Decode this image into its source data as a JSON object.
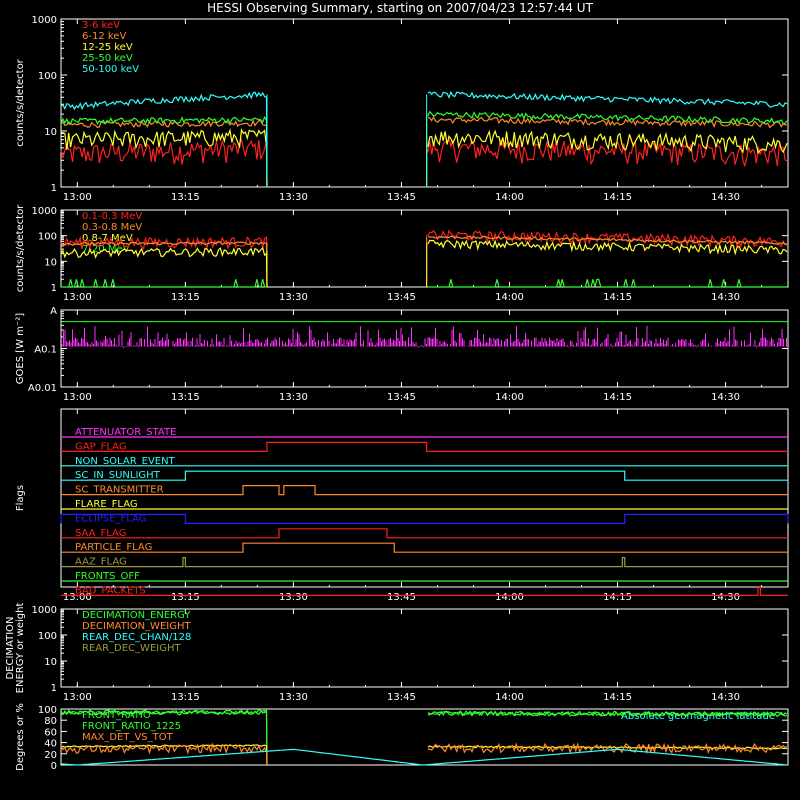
{
  "title": "HESSI Observing Summary, starting on 2007/04/23 12:57:44 UT",
  "colors": {
    "background": "#000000",
    "axes": "#ffffff",
    "red": "#ff2020",
    "orange": "#ff8a2a",
    "yellow": "#ffff30",
    "green": "#30ff30",
    "cyan": "#30ffff",
    "magenta": "#ff30ff",
    "blue": "#2020ff",
    "olive": "#9a9a40"
  },
  "chart_data": [
    {
      "type": "line",
      "name": "hxr-low",
      "ylabel": "counts/s/detector",
      "yscale": "log",
      "ylim": [
        1,
        1000
      ],
      "y_ticks": [
        1,
        10,
        100,
        1000
      ],
      "y_tick_labels": [
        "1",
        "10",
        "100",
        "1000"
      ],
      "x_ticks": [
        "13:00",
        "13:15",
        "13:30",
        "13:45",
        "14:00",
        "14:15",
        "14:30"
      ],
      "xlim": [
        "12:57:44",
        "14:38:40"
      ],
      "gap": [
        "13:26:20",
        "13:48:30"
      ],
      "legend": [
        {
          "label": "3-6 keV",
          "color": "red"
        },
        {
          "label": "6-12 keV",
          "color": "orange"
        },
        {
          "label": "12-25 keV",
          "color": "yellow"
        },
        {
          "label": "25-50 keV",
          "color": "green"
        },
        {
          "label": "50-100 keV",
          "color": "cyan"
        }
      ],
      "series": [
        {
          "color": "red",
          "x": [
            "13:00",
            "13:26",
            "13:49",
            "14:38"
          ],
          "values": [
            4,
            5,
            5,
            4
          ]
        },
        {
          "color": "orange",
          "x": [
            "13:00",
            "13:26",
            "13:49",
            "14:38"
          ],
          "values": [
            13,
            14,
            16,
            13
          ]
        },
        {
          "color": "yellow",
          "x": [
            "13:00",
            "13:26",
            "13:49",
            "14:38"
          ],
          "values": [
            7,
            8,
            8,
            6
          ]
        },
        {
          "color": "green",
          "x": [
            "13:00",
            "13:26",
            "13:49",
            "14:38"
          ],
          "values": [
            15,
            16,
            20,
            15
          ]
        },
        {
          "color": "cyan",
          "x": [
            "13:00",
            "13:26",
            "13:49",
            "14:38"
          ],
          "values": [
            28,
            45,
            45,
            30
          ]
        }
      ]
    },
    {
      "type": "line",
      "name": "gamma",
      "ylabel": "counts/s/detector",
      "yscale": "log",
      "ylim": [
        1,
        1000
      ],
      "y_ticks": [
        1,
        10,
        100,
        1000
      ],
      "y_tick_labels": [
        "1",
        "10",
        "100",
        "1000"
      ],
      "x_ticks": [
        "13:00",
        "13:15",
        "13:30",
        "13:45",
        "14:00",
        "14:15",
        "14:30"
      ],
      "xlim": [
        "12:57:44",
        "14:38:40"
      ],
      "gap": [
        "13:26:20",
        "13:48:30"
      ],
      "legend": [
        {
          "label": "0.1-0.3 MeV",
          "color": "red"
        },
        {
          "label": "0.3-0.8 MeV",
          "color": "orange"
        },
        {
          "label": "0.8-7 MeV",
          "color": "yellow"
        },
        {
          "label": "7-20 MeV",
          "color": "green"
        }
      ],
      "series": [
        {
          "color": "red",
          "x": [
            "13:00",
            "13:26",
            "13:49",
            "14:38"
          ],
          "values": [
            55,
            60,
            110,
            60
          ]
        },
        {
          "color": "orange",
          "x": [
            "13:00",
            "13:26",
            "13:49",
            "14:38"
          ],
          "values": [
            48,
            52,
            90,
            50
          ]
        },
        {
          "color": "yellow",
          "x": [
            "13:00",
            "13:26",
            "13:49",
            "14:38"
          ],
          "values": [
            22,
            25,
            50,
            28
          ]
        },
        {
          "color": "green",
          "x": [
            "13:00",
            "13:26",
            "13:49",
            "14:38"
          ],
          "values": [
            1,
            1,
            1,
            1
          ]
        }
      ]
    },
    {
      "type": "line",
      "name": "goes",
      "ylabel": "GOES [W m⁻²]",
      "yscale": "log",
      "ylim": [
        0.01,
        1
      ],
      "y_ticks": [
        0.01,
        0.1,
        1
      ],
      "y_tick_labels": [
        "A0.01",
        "A0.1",
        "A"
      ],
      "x_ticks": [
        "13:00",
        "13:15",
        "13:30",
        "13:45",
        "14:00",
        "14:15",
        "14:30"
      ],
      "xlim": [
        "12:57:44",
        "14:38:40"
      ],
      "series": [
        {
          "color": "green",
          "x": [
            "12:57:44",
            "14:38:40"
          ],
          "values": [
            0.5,
            0.5
          ]
        },
        {
          "color": "magenta",
          "x": [
            "12:57:44",
            "14:38:40"
          ],
          "values": [
            0.15,
            0.15
          ]
        }
      ]
    },
    {
      "type": "line",
      "name": "flags",
      "ylabel": "Flags",
      "x_ticks": [
        "13:00",
        "13:15",
        "13:30",
        "13:45",
        "14:00",
        "14:15",
        "14:30"
      ],
      "xlim": [
        "12:57:44",
        "14:38:40"
      ],
      "flags": [
        {
          "label": "ATTENUATOR_STATE",
          "color": "magenta",
          "on": []
        },
        {
          "label": "GAP_FLAG",
          "color": "red",
          "on": [
            [
              "13:26:20",
              "13:48:30"
            ]
          ]
        },
        {
          "label": "NON_SOLAR_EVENT",
          "color": "cyan",
          "on": []
        },
        {
          "label": "SC_IN_SUNLIGHT",
          "color": "cyan",
          "on": [
            [
              "13:15",
              "14:16"
            ]
          ]
        },
        {
          "label": "SC_TRANSMITTER",
          "color": "orange",
          "on": [
            [
              "13:23",
              "13:28"
            ],
            [
              "13:28:40",
              "13:33"
            ]
          ]
        },
        {
          "label": "FLARE_FLAG",
          "color": "yellow",
          "on": []
        },
        {
          "label": "ECLIPSE_FLAG",
          "color": "blue",
          "on": [
            [
              "12:57:44",
              "13:15"
            ],
            [
              "14:16",
              "14:38:40"
            ]
          ]
        },
        {
          "label": "SAA_FLAG",
          "color": "red",
          "on": [
            [
              "13:28",
              "13:43"
            ]
          ]
        },
        {
          "label": "PARTICLE_FLAG",
          "color": "orange",
          "on": [
            [
              "13:23",
              "13:44"
            ]
          ]
        },
        {
          "label": "AAZ_FLAG",
          "color": "olive",
          "on": [
            [
              "13:14:40",
              "13:15"
            ],
            [
              "14:15:40",
              "14:16"
            ]
          ]
        },
        {
          "label": "FRONTS_OFF",
          "color": "green",
          "on": []
        },
        {
          "label": "BAD_PACKETS",
          "color": "red",
          "on": [
            [
              "14:34:30",
              "14:34:50"
            ]
          ]
        }
      ]
    },
    {
      "type": "line",
      "name": "decimation",
      "ylabel": "DECIMATION ENERGY or weight",
      "yscale": "log",
      "ylim": [
        1,
        1000
      ],
      "y_ticks": [
        1,
        10,
        100,
        1000
      ],
      "y_tick_labels": [
        "1",
        "10",
        "100",
        "1000"
      ],
      "x_ticks": [
        "13:00",
        "13:15",
        "13:30",
        "13:45",
        "14:00",
        "14:15",
        "14:30"
      ],
      "xlim": [
        "12:57:44",
        "14:38:40"
      ],
      "legend": [
        {
          "label": "DECIMATION_ENERGY",
          "color": "green"
        },
        {
          "label": "DECIMATION_WEIGHT",
          "color": "orange"
        },
        {
          "label": "REAR_DEC_CHAN/128",
          "color": "cyan"
        },
        {
          "label": "REAR_DEC_WEIGHT",
          "color": "olive"
        }
      ]
    },
    {
      "type": "line",
      "name": "ratios",
      "ylabel": "Degrees or %",
      "ylim": [
        0,
        100
      ],
      "y_ticks": [
        0,
        20,
        40,
        60,
        80,
        100
      ],
      "y_tick_labels": [
        "0",
        "20",
        "40",
        "60",
        "80",
        "100"
      ],
      "x_ticks": [],
      "xlim": [
        "12:57:44",
        "14:38:40"
      ],
      "gap": [
        "13:26:20",
        "13:48:30"
      ],
      "legend": [
        {
          "label": "FRONT_RATIO",
          "color": "green"
        },
        {
          "label": "FRONT_RATIO_1225",
          "color": "green"
        },
        {
          "label": "MAX_DET_VS_TOT",
          "color": "orange"
        }
      ],
      "annotation": {
        "label": "Absolute geomagnetic latitude",
        "color": "cyan"
      },
      "series": [
        {
          "color": "green",
          "x": [
            "13:00",
            "13:26",
            "13:49",
            "14:38"
          ],
          "values": [
            93,
            94,
            92,
            90
          ]
        },
        {
          "color": "green",
          "x": [
            "13:00",
            "13:26",
            "13:49",
            "14:38"
          ],
          "values": [
            94,
            95,
            93,
            91
          ]
        },
        {
          "color": "yellow",
          "x": [
            "13:00",
            "13:26",
            "13:49",
            "14:38"
          ],
          "values": [
            33,
            35,
            33,
            30
          ]
        },
        {
          "color": "orange",
          "x": [
            "13:00",
            "13:26",
            "13:49",
            "14:38"
          ],
          "values": [
            28,
            30,
            30,
            30
          ]
        },
        {
          "color": "cyan",
          "x": [
            "12:57:44",
            "13:00",
            "13:30",
            "13:48",
            "14:15",
            "14:38:40"
          ],
          "values": [
            2,
            0,
            28,
            0,
            28,
            0
          ]
        }
      ]
    }
  ]
}
